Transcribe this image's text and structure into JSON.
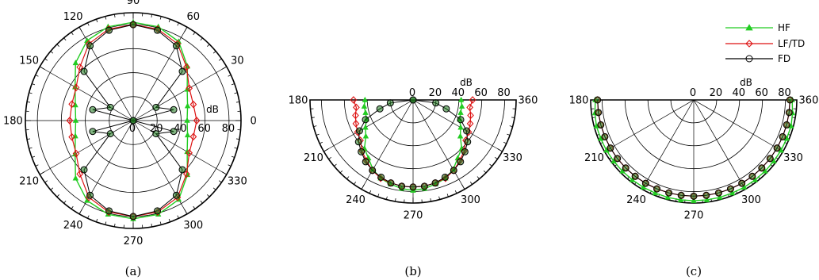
{
  "legend": [
    {
      "name": "HF",
      "color": "#22cc22",
      "marker": "triangle"
    },
    {
      "name": "LF/TD",
      "color": "#dd1111",
      "marker": "diamond"
    },
    {
      "name": "FD",
      "color": "#000000",
      "marker": "circle"
    }
  ],
  "chart_data": [
    {
      "type": "polar-line",
      "panel": "(a)",
      "angular_range": [
        0,
        360
      ],
      "radial_unit": "dB",
      "radial_ticks": [
        0,
        20,
        40,
        60,
        80
      ],
      "rlim": [
        0,
        90
      ],
      "angle_ticks": [
        0,
        30,
        60,
        90,
        120,
        150,
        180,
        210,
        240,
        270,
        300,
        330
      ],
      "angle_labels": [
        "0",
        "30",
        "60",
        "90",
        "120",
        "150",
        "180",
        "210",
        "240",
        "270",
        "300",
        "330"
      ],
      "series": [
        {
          "name": "HF",
          "angles": [
            0,
            15,
            30,
            45,
            60,
            75,
            90,
            105,
            120,
            135,
            150,
            165,
            180,
            195,
            210,
            225,
            240,
            255,
            270,
            285,
            300,
            315,
            330,
            345
          ],
          "values": [
            45,
            47,
            52,
            64,
            76,
            81,
            82,
            81,
            77,
            68,
            56,
            50,
            48,
            50,
            56,
            68,
            77,
            81,
            82,
            81,
            76,
            64,
            52,
            47
          ]
        },
        {
          "name": "LF/TD",
          "angles": [
            0,
            15,
            30,
            45,
            60,
            75,
            90,
            105,
            120,
            135,
            150,
            165,
            180,
            195,
            210,
            225,
            240,
            255,
            270,
            285,
            300,
            315,
            330,
            345
          ],
          "values": [
            53,
            52,
            54,
            63,
            74,
            79,
            80,
            79,
            74,
            63,
            55,
            53,
            53,
            53,
            55,
            63,
            74,
            79,
            80,
            79,
            74,
            63,
            54,
            52
          ]
        },
        {
          "name": "FD",
          "angles": [
            0,
            15,
            30,
            45,
            60,
            75,
            90,
            105,
            120,
            135,
            150,
            165,
            180,
            195,
            210,
            225,
            240,
            255,
            270,
            285,
            300,
            315,
            330,
            345
          ],
          "values": [
            0,
            35,
            22,
            58,
            72,
            78,
            80,
            78,
            72,
            58,
            22,
            35,
            0,
            35,
            22,
            58,
            72,
            78,
            80,
            78,
            72,
            58,
            22,
            35
          ]
        }
      ]
    },
    {
      "type": "polar-line",
      "panel": "(b)",
      "angular_range": [
        180,
        360
      ],
      "radial_unit": "dB",
      "radial_ticks": [
        0,
        20,
        40,
        60,
        80
      ],
      "rlim": [
        0,
        90
      ],
      "angle_ticks": [
        180,
        210,
        240,
        270,
        300,
        330,
        360
      ],
      "angle_labels": [
        "180",
        "210",
        "240",
        "270",
        "300",
        "330",
        "360"
      ],
      "series": [
        {
          "name": "HF",
          "angles": [
            180,
            187.5,
            195,
            202.5,
            210,
            217.5,
            225,
            232.5,
            240,
            247.5,
            255,
            262.5,
            270,
            277.5,
            285,
            292.5,
            300,
            307.5,
            315,
            322.5,
            330,
            337.5,
            345,
            352.5,
            360
          ],
          "values": [
            42,
            43,
            43,
            44,
            48,
            52,
            60,
            64,
            70,
            74,
            76,
            78,
            79,
            78,
            76,
            74,
            70,
            64,
            60,
            52,
            48,
            44,
            43,
            43,
            42
          ]
        },
        {
          "name": "LF/TD",
          "angles": [
            180,
            187.5,
            195,
            202.5,
            210,
            217.5,
            225,
            232.5,
            240,
            247.5,
            255,
            262.5,
            270,
            277.5,
            285,
            292.5,
            300,
            307.5,
            315,
            322.5,
            330,
            337.5,
            345,
            352.5,
            360
          ],
          "values": [
            52,
            50,
            52,
            54,
            56,
            58,
            63,
            67,
            71,
            74,
            75,
            76,
            76,
            76,
            75,
            74,
            71,
            67,
            63,
            58,
            56,
            54,
            52,
            50,
            52
          ]
        },
        {
          "name": "FD",
          "angles": [
            180,
            187.5,
            195,
            202.5,
            210,
            217.5,
            225,
            232.5,
            240,
            247.5,
            255,
            262.5,
            270,
            277.5,
            285,
            292.5,
            300,
            307.5,
            315,
            322.5,
            330,
            337.5,
            345,
            352.5,
            360
          ],
          "values": [
            0,
            20,
            30,
            45,
            54,
            60,
            64,
            68,
            71,
            73,
            75,
            76,
            76,
            76,
            75,
            73,
            71,
            68,
            64,
            60,
            54,
            45,
            30,
            20,
            0
          ]
        }
      ]
    },
    {
      "type": "polar-line",
      "panel": "(c)",
      "angular_range": [
        180,
        360
      ],
      "radial_unit": "dB",
      "radial_ticks": [
        0,
        20,
        40,
        60,
        80
      ],
      "rlim": [
        0,
        90
      ],
      "angle_ticks": [
        180,
        210,
        240,
        270,
        300,
        330,
        360
      ],
      "angle_labels": [
        "180",
        "210",
        "240",
        "270",
        "300",
        "330",
        "360"
      ],
      "series": [
        {
          "name": "HF",
          "angles": [
            180,
            187.5,
            195,
            202.5,
            210,
            217.5,
            225,
            232.5,
            240,
            247.5,
            255,
            262.5,
            270,
            277.5,
            285,
            292.5,
            300,
            307.5,
            315,
            322.5,
            330,
            337.5,
            345,
            352.5,
            360
          ],
          "values": [
            86,
            87,
            88,
            88,
            88,
            88,
            88,
            88,
            88,
            88,
            88,
            88,
            88,
            88,
            88,
            88,
            88,
            88,
            88,
            88,
            88,
            88,
            88,
            87,
            86
          ]
        },
        {
          "name": "LF/TD",
          "angles": [
            180,
            187.5,
            195,
            202.5,
            210,
            217.5,
            225,
            232.5,
            240,
            247.5,
            255,
            262.5,
            270,
            277.5,
            285,
            292.5,
            300,
            307.5,
            315,
            322.5,
            330,
            337.5,
            345,
            352.5,
            360
          ],
          "values": [
            84,
            84,
            84,
            84,
            84,
            84,
            84,
            84,
            84,
            84,
            84,
            84,
            84,
            84,
            84,
            84,
            84,
            84,
            84,
            84,
            84,
            84,
            84,
            84,
            84
          ]
        },
        {
          "name": "FD",
          "angles": [
            180,
            187.5,
            195,
            202.5,
            210,
            217.5,
            225,
            232.5,
            240,
            247.5,
            255,
            262.5,
            270,
            277.5,
            285,
            292.5,
            300,
            307.5,
            315,
            322.5,
            330,
            337.5,
            345,
            352.5,
            360
          ],
          "values": [
            84,
            84,
            84,
            84,
            84,
            84,
            84,
            84,
            84,
            84,
            84,
            84,
            84,
            84,
            84,
            84,
            84,
            84,
            84,
            84,
            84,
            84,
            84,
            84,
            84
          ]
        }
      ]
    }
  ]
}
